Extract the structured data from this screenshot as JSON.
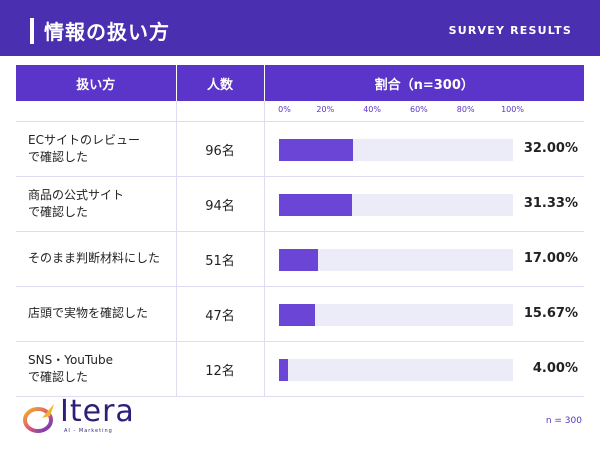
{
  "header": {
    "title": "情報の扱い方",
    "label": "SURVEY RESULTS"
  },
  "table": {
    "col_method": "扱い方",
    "col_count": "人数",
    "col_ratio": "割合（n=300）"
  },
  "chart_data": {
    "type": "bar",
    "orientation": "horizontal",
    "xlim": [
      0,
      100
    ],
    "ticks": [
      "0%",
      "20%",
      "40%",
      "60%",
      "80%",
      "100%"
    ],
    "rows": [
      {
        "label_lines": [
          "ECサイトのレビュー",
          "で確認した"
        ],
        "count": "96名",
        "value": 32.0,
        "value_label": "32.00%"
      },
      {
        "label_lines": [
          "商品の公式サイト",
          "で確認した"
        ],
        "count": "94名",
        "value": 31.33,
        "value_label": "31.33%"
      },
      {
        "label_lines": [
          "そのまま判断材料にした"
        ],
        "count": "51名",
        "value": 17.0,
        "value_label": "17.00%"
      },
      {
        "label_lines": [
          "店頭で実物を確認した"
        ],
        "count": "47名",
        "value": 15.67,
        "value_label": "15.67%"
      },
      {
        "label_lines": [
          "SNS・YouTube",
          "で確認した"
        ],
        "count": "12名",
        "value": 4.0,
        "value_label": "4.00%"
      }
    ]
  },
  "logo": {
    "word": "Itera",
    "sub": "AI - Marketing"
  },
  "footer": {
    "note": "n = 300"
  },
  "colors": {
    "background": "#4a2fb0",
    "header": "#5b34c9",
    "bar": "#6a45d6",
    "bar_track": "#ecebf8"
  }
}
